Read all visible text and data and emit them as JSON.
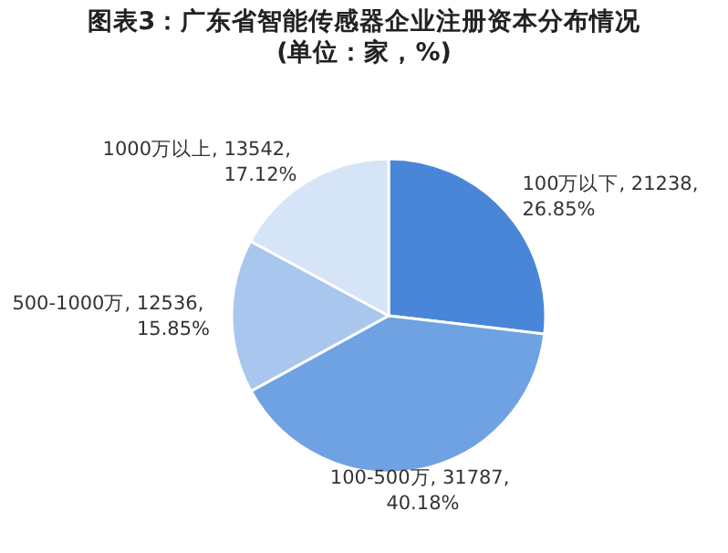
{
  "chart_data": {
    "type": "pie",
    "title": "图表3：广东省智能传感器企业注册资本分布情况",
    "subtitle": "(单位：家，%)",
    "categories": [
      "100万以下",
      "100-500万",
      "500-1000万",
      "1000万以上"
    ],
    "values": [
      26.85,
      40.18,
      15.85,
      17.12
    ],
    "value_labels": [
      "21238, 26.85%",
      "31787, 40.18%",
      "12536, 15.85%",
      "13542, 17.12%"
    ],
    "colors": [
      "#4a86d8",
      "#6fa2e3",
      "#a9c6ee",
      "#d6e4f7"
    ]
  }
}
